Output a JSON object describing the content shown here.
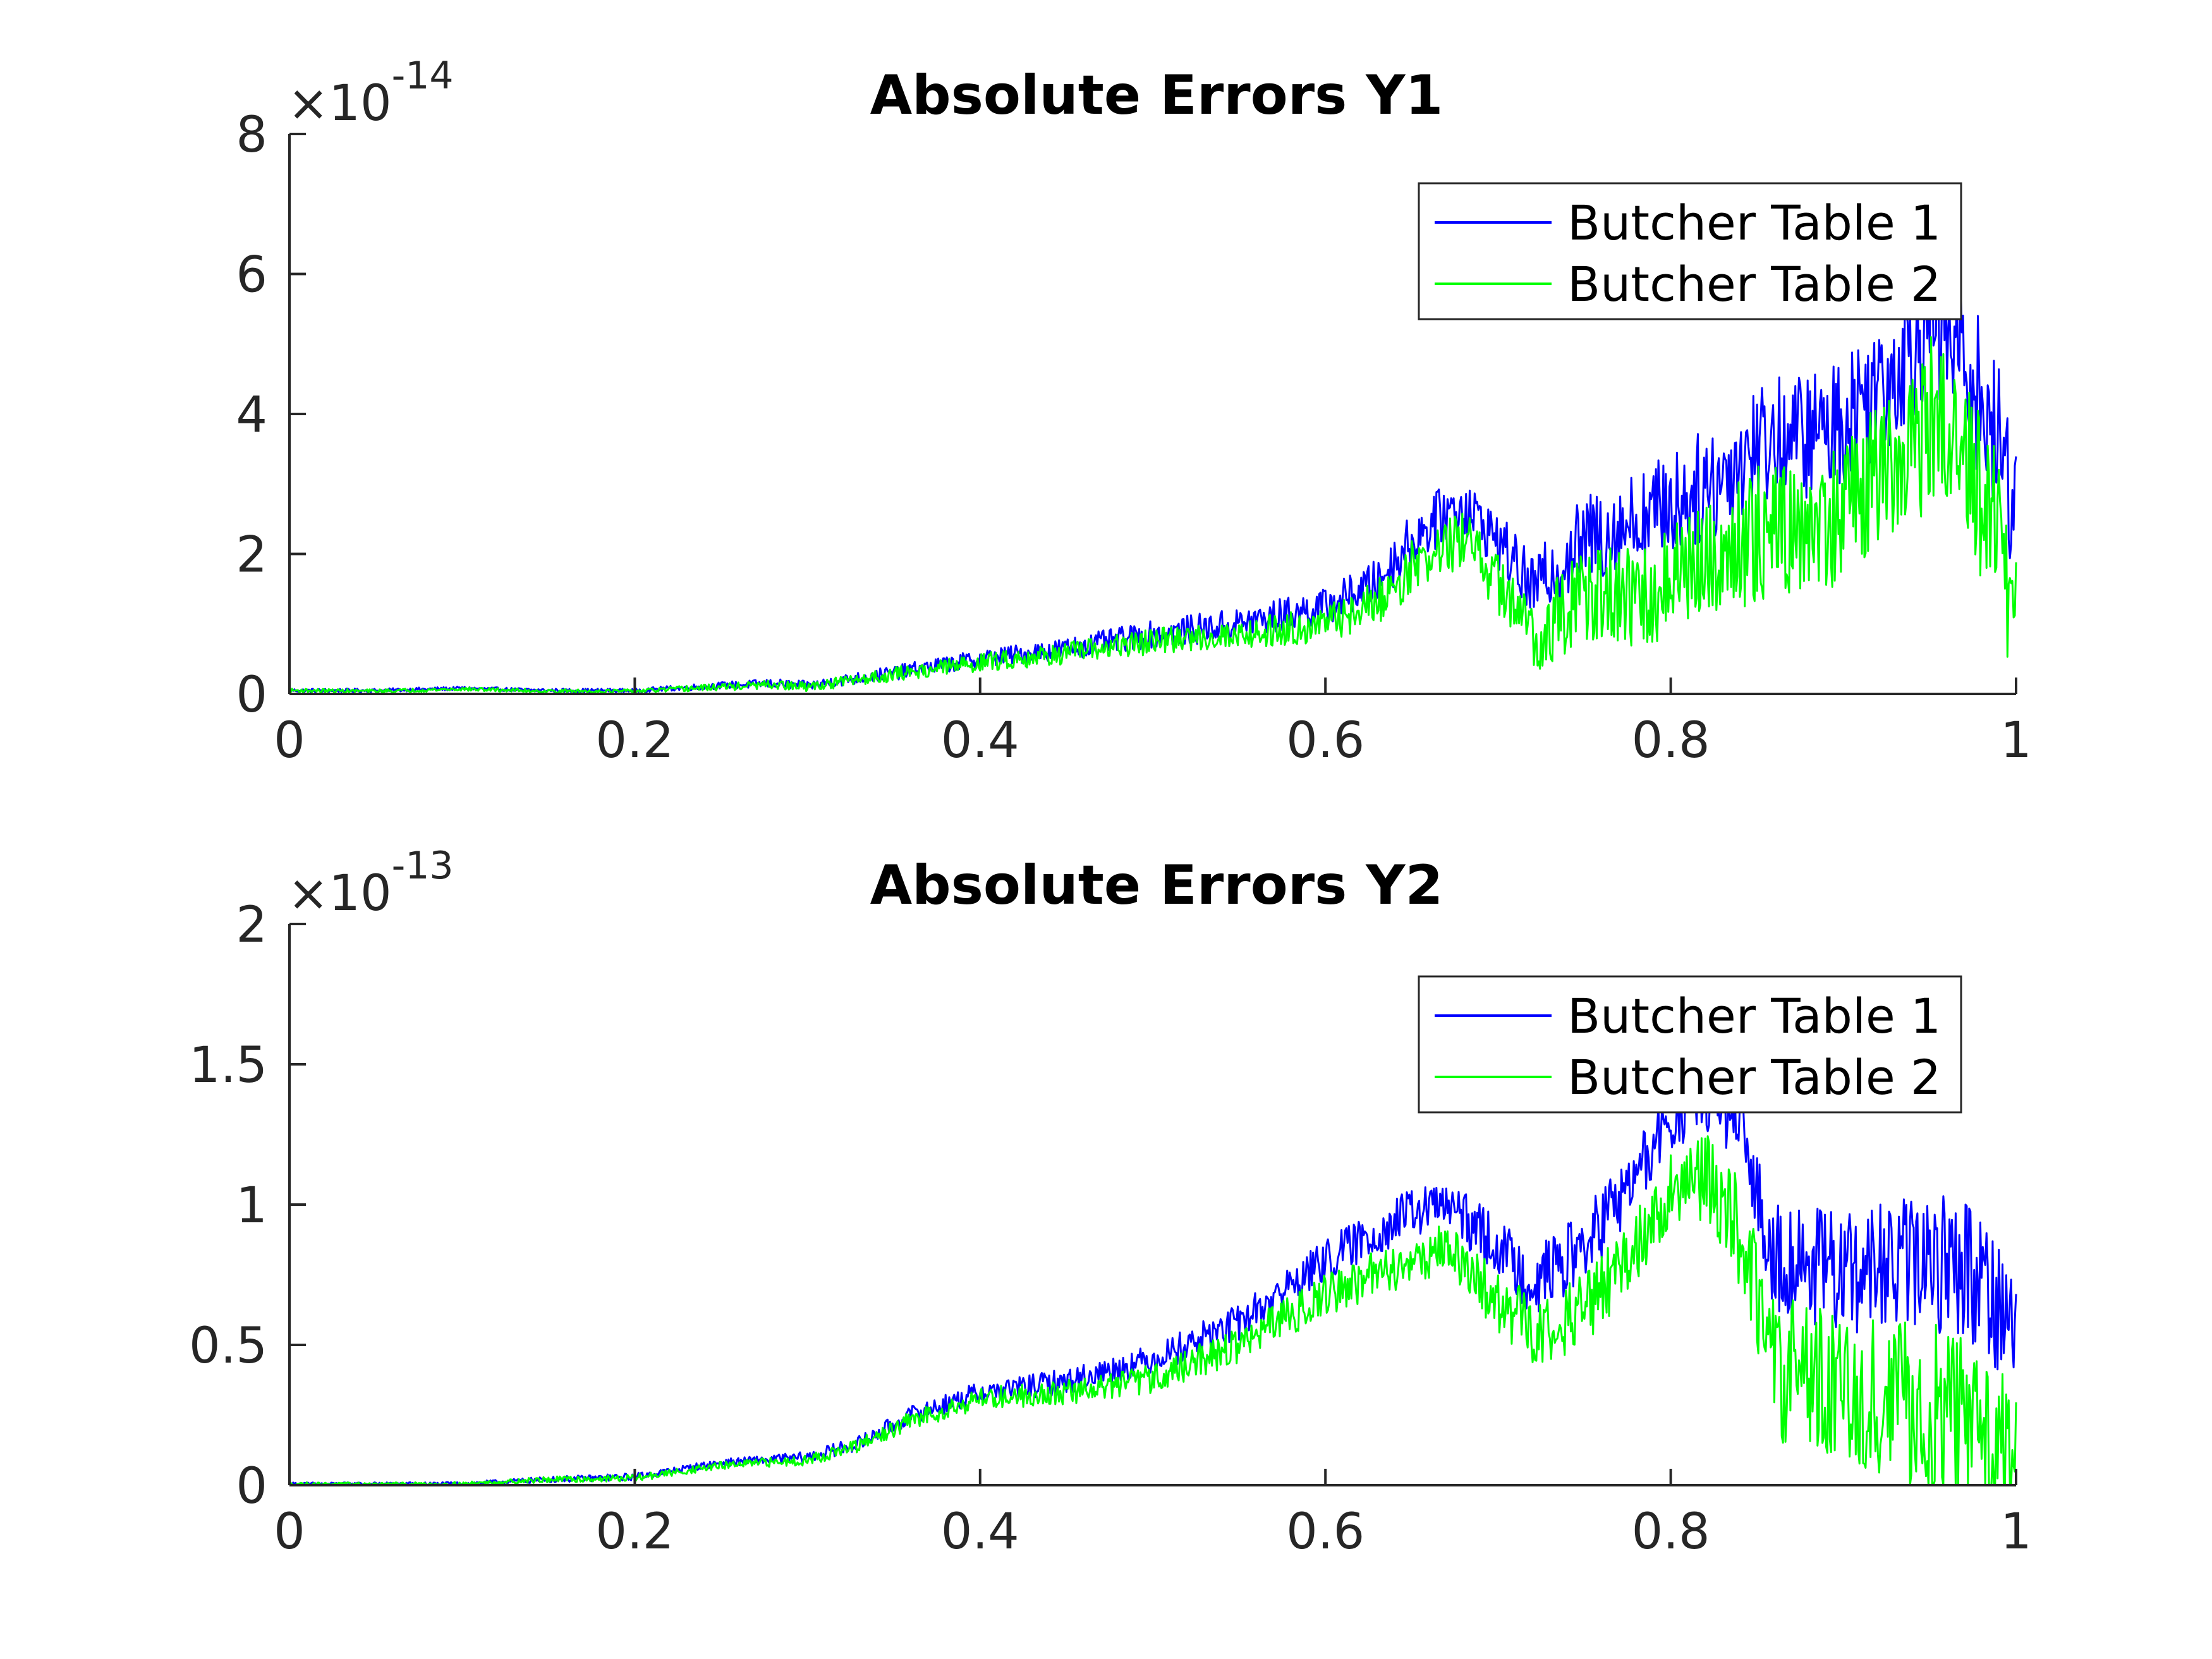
{
  "chart_data": [
    {
      "type": "line",
      "title": "Absolute Errors Y1",
      "xlabel": "",
      "ylabel": "",
      "xlim": [
        0,
        1
      ],
      "ylim": [
        0,
        8
      ],
      "y_exponent_base": "×10",
      "y_exponent_power": "-14",
      "x_ticks": [
        "0",
        "0.2",
        "0.4",
        "0.6",
        "0.8",
        "1"
      ],
      "x_tick_values": [
        0,
        0.2,
        0.4,
        0.6,
        0.8,
        1
      ],
      "y_ticks": [
        "0",
        "2",
        "4",
        "6",
        "8"
      ],
      "y_tick_values": [
        0,
        2,
        4,
        6,
        8
      ],
      "grid": false,
      "legend_position": "top-right",
      "series": [
        {
          "name": "Butcher Table 1",
          "color": "#0000ff",
          "x": [
            0,
            0.05,
            0.1,
            0.15,
            0.2,
            0.25,
            0.28,
            0.3,
            0.35,
            0.4,
            0.45,
            0.5,
            0.55,
            0.6,
            0.63,
            0.65,
            0.67,
            0.68,
            0.7,
            0.72,
            0.75,
            0.78,
            0.8,
            0.83,
            0.85,
            0.88,
            0.9,
            0.93,
            0.95,
            0.97,
            0.99,
            1.0
          ],
          "values": [
            0.05,
            0.05,
            0.08,
            0.05,
            0.05,
            0.12,
            0.15,
            0.12,
            0.3,
            0.5,
            0.65,
            0.85,
            1.0,
            1.25,
            1.6,
            2.2,
            2.6,
            2.7,
            2.2,
            1.5,
            2.2,
            2.5,
            2.7,
            3.1,
            3.6,
            3.7,
            3.9,
            4.7,
            5.4,
            4.8,
            3.5,
            2.8
          ],
          "noise": [
            0.02,
            0.02,
            0.02,
            0.02,
            0.02,
            0.04,
            0.05,
            0.05,
            0.08,
            0.1,
            0.12,
            0.15,
            0.18,
            0.2,
            0.25,
            0.3,
            0.32,
            0.32,
            0.32,
            0.35,
            0.5,
            0.55,
            0.6,
            0.65,
            0.7,
            0.7,
            0.75,
            0.85,
            0.9,
            0.9,
            0.9,
            0.9
          ]
        },
        {
          "name": "Butcher Table 2",
          "color": "#00ff00",
          "x": [
            0,
            0.05,
            0.1,
            0.15,
            0.2,
            0.25,
            0.28,
            0.3,
            0.35,
            0.4,
            0.45,
            0.5,
            0.55,
            0.6,
            0.63,
            0.65,
            0.67,
            0.68,
            0.7,
            0.72,
            0.75,
            0.78,
            0.8,
            0.83,
            0.85,
            0.88,
            0.9,
            0.93,
            0.95,
            0.97,
            0.99,
            1.0
          ],
          "values": [
            0.05,
            0.04,
            0.07,
            0.04,
            0.04,
            0.1,
            0.13,
            0.1,
            0.28,
            0.45,
            0.58,
            0.75,
            0.85,
            1.0,
            1.3,
            1.8,
            2.1,
            2.2,
            1.6,
            0.8,
            1.4,
            1.3,
            1.6,
            2.0,
            2.3,
            2.4,
            2.6,
            3.2,
            3.9,
            3.3,
            2.2,
            1.0
          ],
          "noise": [
            0.02,
            0.02,
            0.02,
            0.02,
            0.02,
            0.04,
            0.05,
            0.05,
            0.08,
            0.1,
            0.12,
            0.14,
            0.16,
            0.2,
            0.25,
            0.3,
            0.32,
            0.32,
            0.35,
            0.4,
            0.55,
            0.6,
            0.65,
            0.7,
            0.75,
            0.75,
            0.8,
            0.9,
            0.95,
            0.95,
            0.95,
            0.9
          ]
        }
      ]
    },
    {
      "type": "line",
      "title": "Absolute Errors Y2",
      "xlabel": "",
      "ylabel": "",
      "xlim": [
        0,
        1
      ],
      "ylim": [
        0,
        2
      ],
      "y_exponent_base": "×10",
      "y_exponent_power": "-13",
      "x_ticks": [
        "0",
        "0.2",
        "0.4",
        "0.6",
        "0.8",
        "1"
      ],
      "x_tick_values": [
        0,
        0.2,
        0.4,
        0.6,
        0.8,
        1
      ],
      "y_ticks": [
        "0",
        "0.5",
        "1",
        "1.5",
        "2"
      ],
      "y_tick_values": [
        0,
        0.5,
        1,
        1.5,
        2
      ],
      "grid": false,
      "legend_position": "top-right",
      "series": [
        {
          "name": "Butcher Table 1",
          "color": "#0000ff",
          "x": [
            0,
            0.05,
            0.1,
            0.15,
            0.2,
            0.25,
            0.3,
            0.33,
            0.36,
            0.4,
            0.45,
            0.5,
            0.55,
            0.6,
            0.65,
            0.67,
            0.7,
            0.72,
            0.75,
            0.78,
            0.8,
            0.82,
            0.84,
            0.86,
            0.9,
            0.93,
            0.96,
            0.98,
            1.0
          ],
          "values": [
            0.005,
            0.005,
            0.005,
            0.02,
            0.03,
            0.08,
            0.1,
            0.15,
            0.25,
            0.33,
            0.37,
            0.45,
            0.58,
            0.8,
            0.97,
            1.0,
            0.85,
            0.72,
            0.85,
            1.1,
            1.3,
            1.4,
            1.25,
            0.82,
            0.75,
            0.78,
            0.8,
            0.75,
            0.55
          ],
          "noise": [
            0.004,
            0.004,
            0.005,
            0.008,
            0.01,
            0.01,
            0.015,
            0.02,
            0.025,
            0.03,
            0.035,
            0.04,
            0.05,
            0.06,
            0.07,
            0.07,
            0.08,
            0.09,
            0.1,
            0.1,
            0.1,
            0.1,
            0.1,
            0.15,
            0.17,
            0.18,
            0.2,
            0.2,
            0.2
          ]
        },
        {
          "name": "Butcher Table 2",
          "color": "#00ff00",
          "x": [
            0,
            0.05,
            0.1,
            0.15,
            0.2,
            0.25,
            0.3,
            0.33,
            0.36,
            0.4,
            0.45,
            0.5,
            0.55,
            0.6,
            0.65,
            0.67,
            0.7,
            0.72,
            0.75,
            0.78,
            0.8,
            0.82,
            0.84,
            0.86,
            0.9,
            0.93,
            0.96,
            0.98,
            1.0
          ],
          "values": [
            0.005,
            0.004,
            0.005,
            0.02,
            0.025,
            0.07,
            0.09,
            0.14,
            0.23,
            0.31,
            0.33,
            0.38,
            0.5,
            0.68,
            0.8,
            0.85,
            0.65,
            0.55,
            0.62,
            0.85,
            1.05,
            1.1,
            0.9,
            0.42,
            0.35,
            0.3,
            0.25,
            0.2,
            0.1
          ],
          "noise": [
            0.004,
            0.004,
            0.005,
            0.008,
            0.01,
            0.01,
            0.015,
            0.02,
            0.025,
            0.03,
            0.035,
            0.04,
            0.05,
            0.06,
            0.07,
            0.07,
            0.09,
            0.1,
            0.1,
            0.1,
            0.1,
            0.12,
            0.15,
            0.2,
            0.2,
            0.22,
            0.25,
            0.25,
            0.2
          ]
        }
      ]
    }
  ]
}
